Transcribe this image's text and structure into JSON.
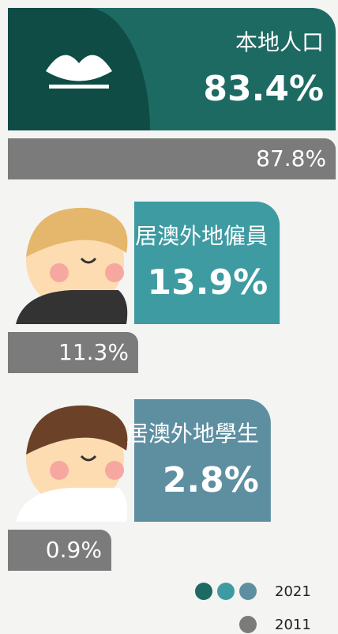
{
  "chart_data": {
    "type": "bar",
    "orientation": "horizontal",
    "categories": [
      "本地人口",
      "居澳外地僱員",
      "居澳外地學生"
    ],
    "series": [
      {
        "name": "2021",
        "colors": [
          "#1d6a62",
          "#3e9ba1",
          "#5e8fa1"
        ],
        "values": [
          83.4,
          13.9,
          2.8
        ],
        "value_labels": [
          "83.4%",
          "13.9%",
          "2.8%"
        ]
      },
      {
        "name": "2011",
        "color": "#7b7b7b",
        "values": [
          87.8,
          11.3,
          0.9
        ],
        "value_labels": [
          "87.8%",
          "11.3%",
          "0.9%"
        ]
      }
    ]
  }
}
